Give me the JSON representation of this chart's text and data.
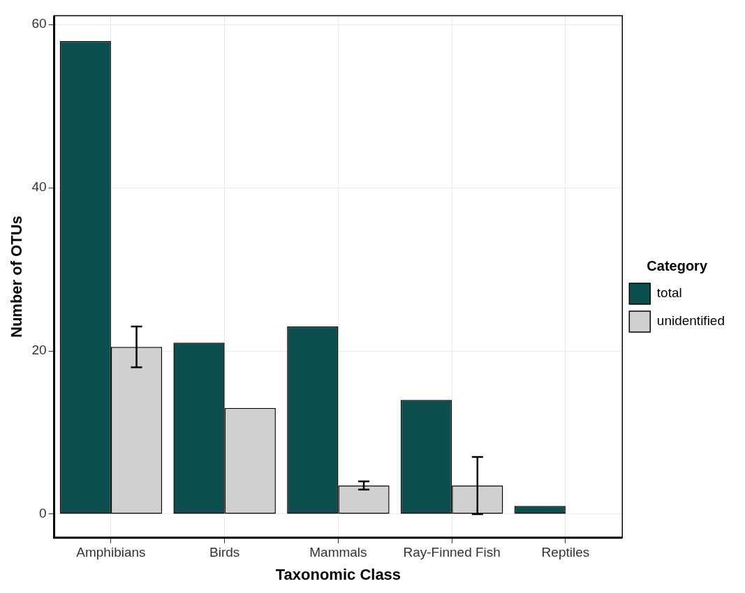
{
  "chart_data": {
    "type": "bar",
    "xlabel": "Taxonomic Class",
    "ylabel": "Number of OTUs",
    "legend_title": "Category",
    "categories": [
      "Amphibians",
      "Birds",
      "Mammals",
      "Ray-Finned Fish",
      "Reptiles"
    ],
    "series": [
      {
        "name": "total",
        "color": "#0d4f4f",
        "values": [
          58,
          21,
          23,
          14,
          1
        ]
      },
      {
        "name": "unidentified",
        "color": "#d0d0d0",
        "values": [
          20.5,
          13,
          3.5,
          3.5,
          0
        ],
        "errors": [
          [
            18,
            23
          ],
          null,
          [
            3,
            4
          ],
          [
            0,
            7
          ],
          null
        ]
      }
    ],
    "ylim": [
      -2.9,
      61.1
    ],
    "yticks": [
      0,
      20,
      40,
      60
    ],
    "grid": true,
    "legend": "right"
  }
}
